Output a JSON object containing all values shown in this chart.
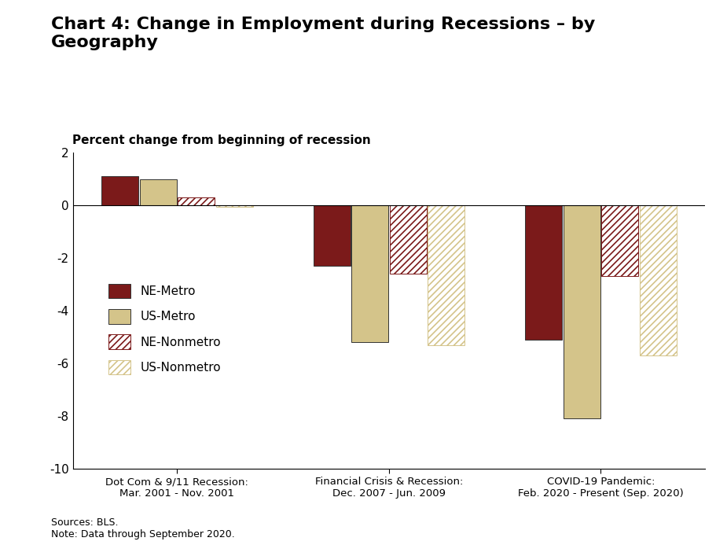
{
  "title": "Chart 4: Change in Employment during Recessions – by\nGeography",
  "subtitle": "Percent change from beginning of recession",
  "categories": [
    "Dot Com & 9/11 Recession:\nMar. 2001 - Nov. 2001",
    "Financial Crisis & Recession:\nDec. 2007 - Jun. 2009",
    "COVID-19 Pandemic:\nFeb. 2020 - Present (Sep. 2020)"
  ],
  "series": {
    "NE-Metro": [
      1.1,
      -2.3,
      -5.1
    ],
    "US-Metro": [
      1.0,
      -5.2,
      -8.1
    ],
    "NE-Nonmetro": [
      0.3,
      -2.6,
      -2.7
    ],
    "US-Nonmetro": [
      -0.05,
      -5.3,
      -5.7
    ]
  },
  "ne_metro_color": "#7B1A1A",
  "us_metro_color": "#D4C48A",
  "ylim": [
    -10,
    2
  ],
  "yticks": [
    -10,
    -8,
    -6,
    -4,
    -2,
    0,
    2
  ],
  "footnote": "Sources: BLS.\nNote: Data through September 2020.",
  "background_color": "#ffffff"
}
